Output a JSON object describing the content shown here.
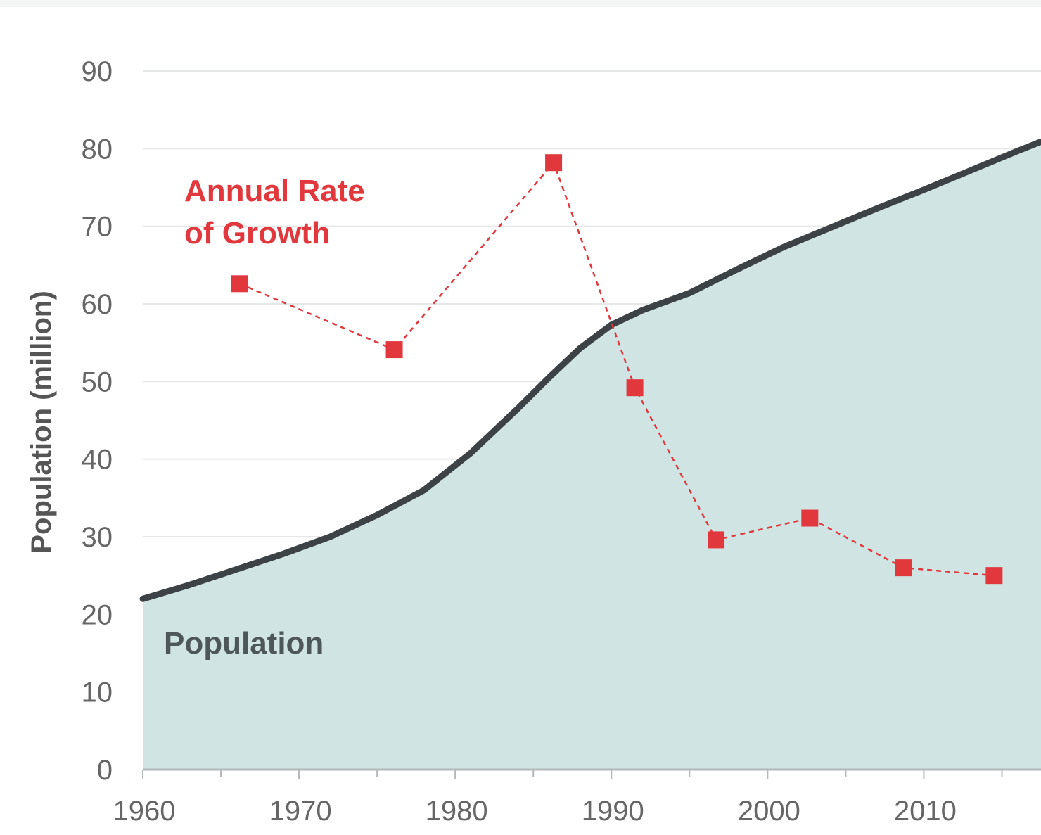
{
  "chart_data": {
    "type": "area",
    "ylabel": "Population (million)",
    "xlabel": "",
    "xlim": [
      1960,
      2017.5
    ],
    "ylim": [
      0,
      90
    ],
    "xticks": [
      1960,
      1970,
      1980,
      1990,
      2000,
      2010
    ],
    "yticks": [
      0,
      10,
      20,
      30,
      40,
      50,
      60,
      70,
      80,
      90
    ],
    "grid": true,
    "series": [
      {
        "name": "Population",
        "type": "area",
        "color": "#3c4245",
        "fill": "#cfe4e3",
        "x": [
          1960,
          1963,
          1966,
          1969,
          1972,
          1975,
          1978,
          1981,
          1984,
          1986,
          1988,
          1990,
          1992,
          1995,
          1998,
          2001,
          2004,
          2007,
          2010,
          2013,
          2016,
          2017.5
        ],
        "y": [
          22,
          23.8,
          25.8,
          27.8,
          30,
          32.8,
          36,
          40.8,
          46.5,
          50.5,
          54.3,
          57.3,
          59.2,
          61.4,
          64.4,
          67.3,
          69.8,
          72.3,
          74.7,
          77.2,
          79.7,
          80.9
        ]
      },
      {
        "name": "Annual Rate of Growth",
        "type": "line",
        "style": "dashed",
        "marker": "square",
        "color": "#e0383d",
        "x": [
          1966.2,
          1976.1,
          1986.3,
          1991.5,
          1996.7,
          2002.7,
          2008.7,
          2014.5
        ],
        "y": [
          62.6,
          54.1,
          78.2,
          49.2,
          29.6,
          32.4,
          26,
          25
        ]
      }
    ]
  }
}
